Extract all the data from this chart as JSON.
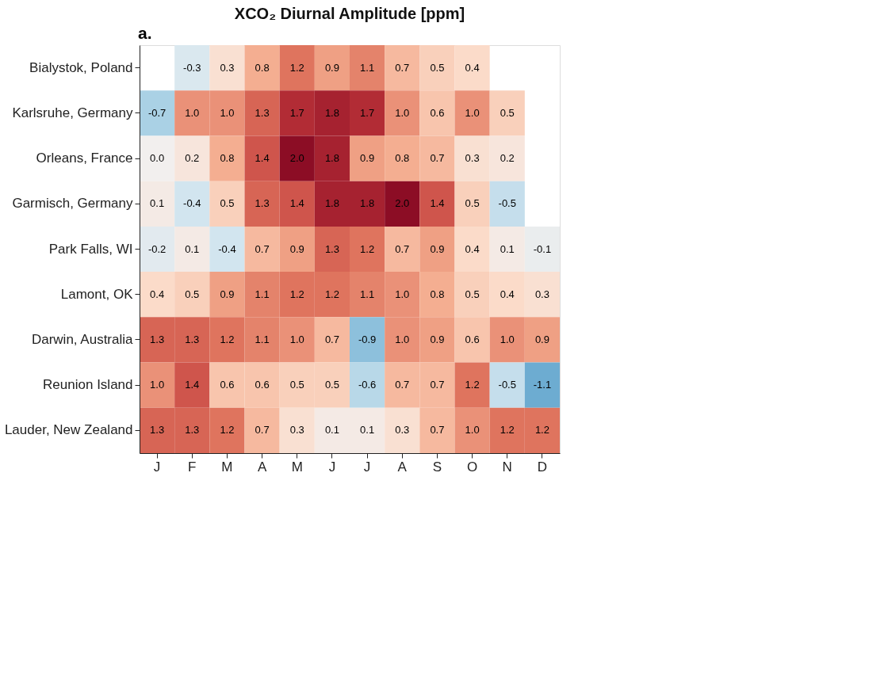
{
  "chart_data": {
    "type": "heatmap",
    "title": "XCO₂ Diurnal Amplitude [ppm]",
    "annotations": [
      "a."
    ],
    "categories": [
      "J",
      "F",
      "M",
      "A",
      "M",
      "J",
      "J",
      "A",
      "S",
      "O",
      "N",
      "D"
    ],
    "y_categories": [
      "Bialystok, Poland",
      "Karlsruhe, Germany",
      "Orleans, France",
      "Garmisch, Germany",
      "Park Falls, WI",
      "Lamont, OK",
      "Darwin, Australia",
      "Reunion Island",
      "Lauder, New Zealand"
    ],
    "cells": [
      [
        null,
        -0.3,
        0.3,
        0.8,
        1.2,
        0.9,
        1.1,
        0.7,
        0.5,
        0.4,
        null,
        null
      ],
      [
        -0.7,
        1.0,
        1.0,
        1.3,
        1.7,
        1.8,
        1.7,
        1.0,
        0.6,
        1.0,
        0.5,
        null
      ],
      [
        0.0,
        0.2,
        0.8,
        1.4,
        2.0,
        1.8,
        0.9,
        0.8,
        0.7,
        0.3,
        0.2,
        null
      ],
      [
        0.1,
        -0.4,
        0.5,
        1.3,
        1.4,
        1.8,
        1.8,
        2.0,
        1.4,
        0.5,
        -0.5,
        null
      ],
      [
        -0.2,
        0.1,
        -0.4,
        0.7,
        0.9,
        1.3,
        1.2,
        0.7,
        0.9,
        0.4,
        0.1,
        -0.1
      ],
      [
        0.4,
        0.5,
        0.9,
        1.1,
        1.2,
        1.2,
        1.1,
        1.0,
        0.8,
        0.5,
        0.4,
        0.3
      ],
      [
        1.3,
        1.3,
        1.2,
        1.1,
        1.0,
        0.7,
        -0.9,
        1.0,
        0.9,
        0.6,
        1.0,
        0.9
      ],
      [
        1.0,
        1.4,
        0.6,
        0.6,
        0.5,
        0.5,
        -0.6,
        0.7,
        0.7,
        1.2,
        -0.5,
        -1.1
      ],
      [
        1.3,
        1.3,
        1.2,
        0.7,
        0.3,
        0.1,
        0.1,
        0.3,
        0.7,
        1.0,
        1.2,
        1.2
      ]
    ],
    "cell_labels": [
      [
        null,
        "-0.3",
        "0.3",
        "0.8",
        "1.2",
        "0.9",
        "1.1",
        "0.7",
        "0.5",
        "0.4",
        null,
        null
      ],
      [
        "-0.7",
        "1.0",
        "1.0",
        "1.3",
        "1.7",
        "1.8",
        "1.7",
        "1.0",
        "0.6",
        "1.0",
        "0.5",
        null
      ],
      [
        "0.0",
        "0.2",
        "0.8",
        "1.4",
        "2.0",
        "1.8",
        "0.9",
        "0.8",
        "0.7",
        "0.3",
        "0.2",
        null
      ],
      [
        "0.1",
        "-0.4",
        "0.5",
        "1.3",
        "1.4",
        "1.8",
        "1.8",
        "2.0",
        "1.4",
        "0.5",
        "-0.5",
        null
      ],
      [
        "-0.2",
        "0.1",
        "-0.4",
        "0.7",
        "0.9",
        "1.3",
        "1.2",
        "0.7",
        "0.9",
        "0.4",
        "0.1",
        "-0.1"
      ],
      [
        "0.4",
        "0.5",
        "0.9",
        "1.1",
        "1.2",
        "1.2",
        "1.1",
        "1.0",
        "0.8",
        "0.5",
        "0.4",
        "0.3"
      ],
      [
        "1.3",
        "1.3",
        "1.2",
        "1.1",
        "1.0",
        "0.7",
        "-0.9",
        "1.0",
        "0.9",
        "0.6",
        "1.0",
        "0.9"
      ],
      [
        "1.0",
        "1.4",
        "0.6",
        "0.6",
        "0.5",
        "0.5",
        "-0.6",
        "0.7",
        "0.7",
        "1.2",
        "-0.5",
        "-1.1"
      ],
      [
        "1.3",
        "1.3",
        "1.2",
        "0.7",
        "0.3",
        "0.1",
        "0.1",
        "0.3",
        "0.7",
        "1.0",
        "1.2",
        "1.2"
      ]
    ],
    "data_labels": true
  }
}
